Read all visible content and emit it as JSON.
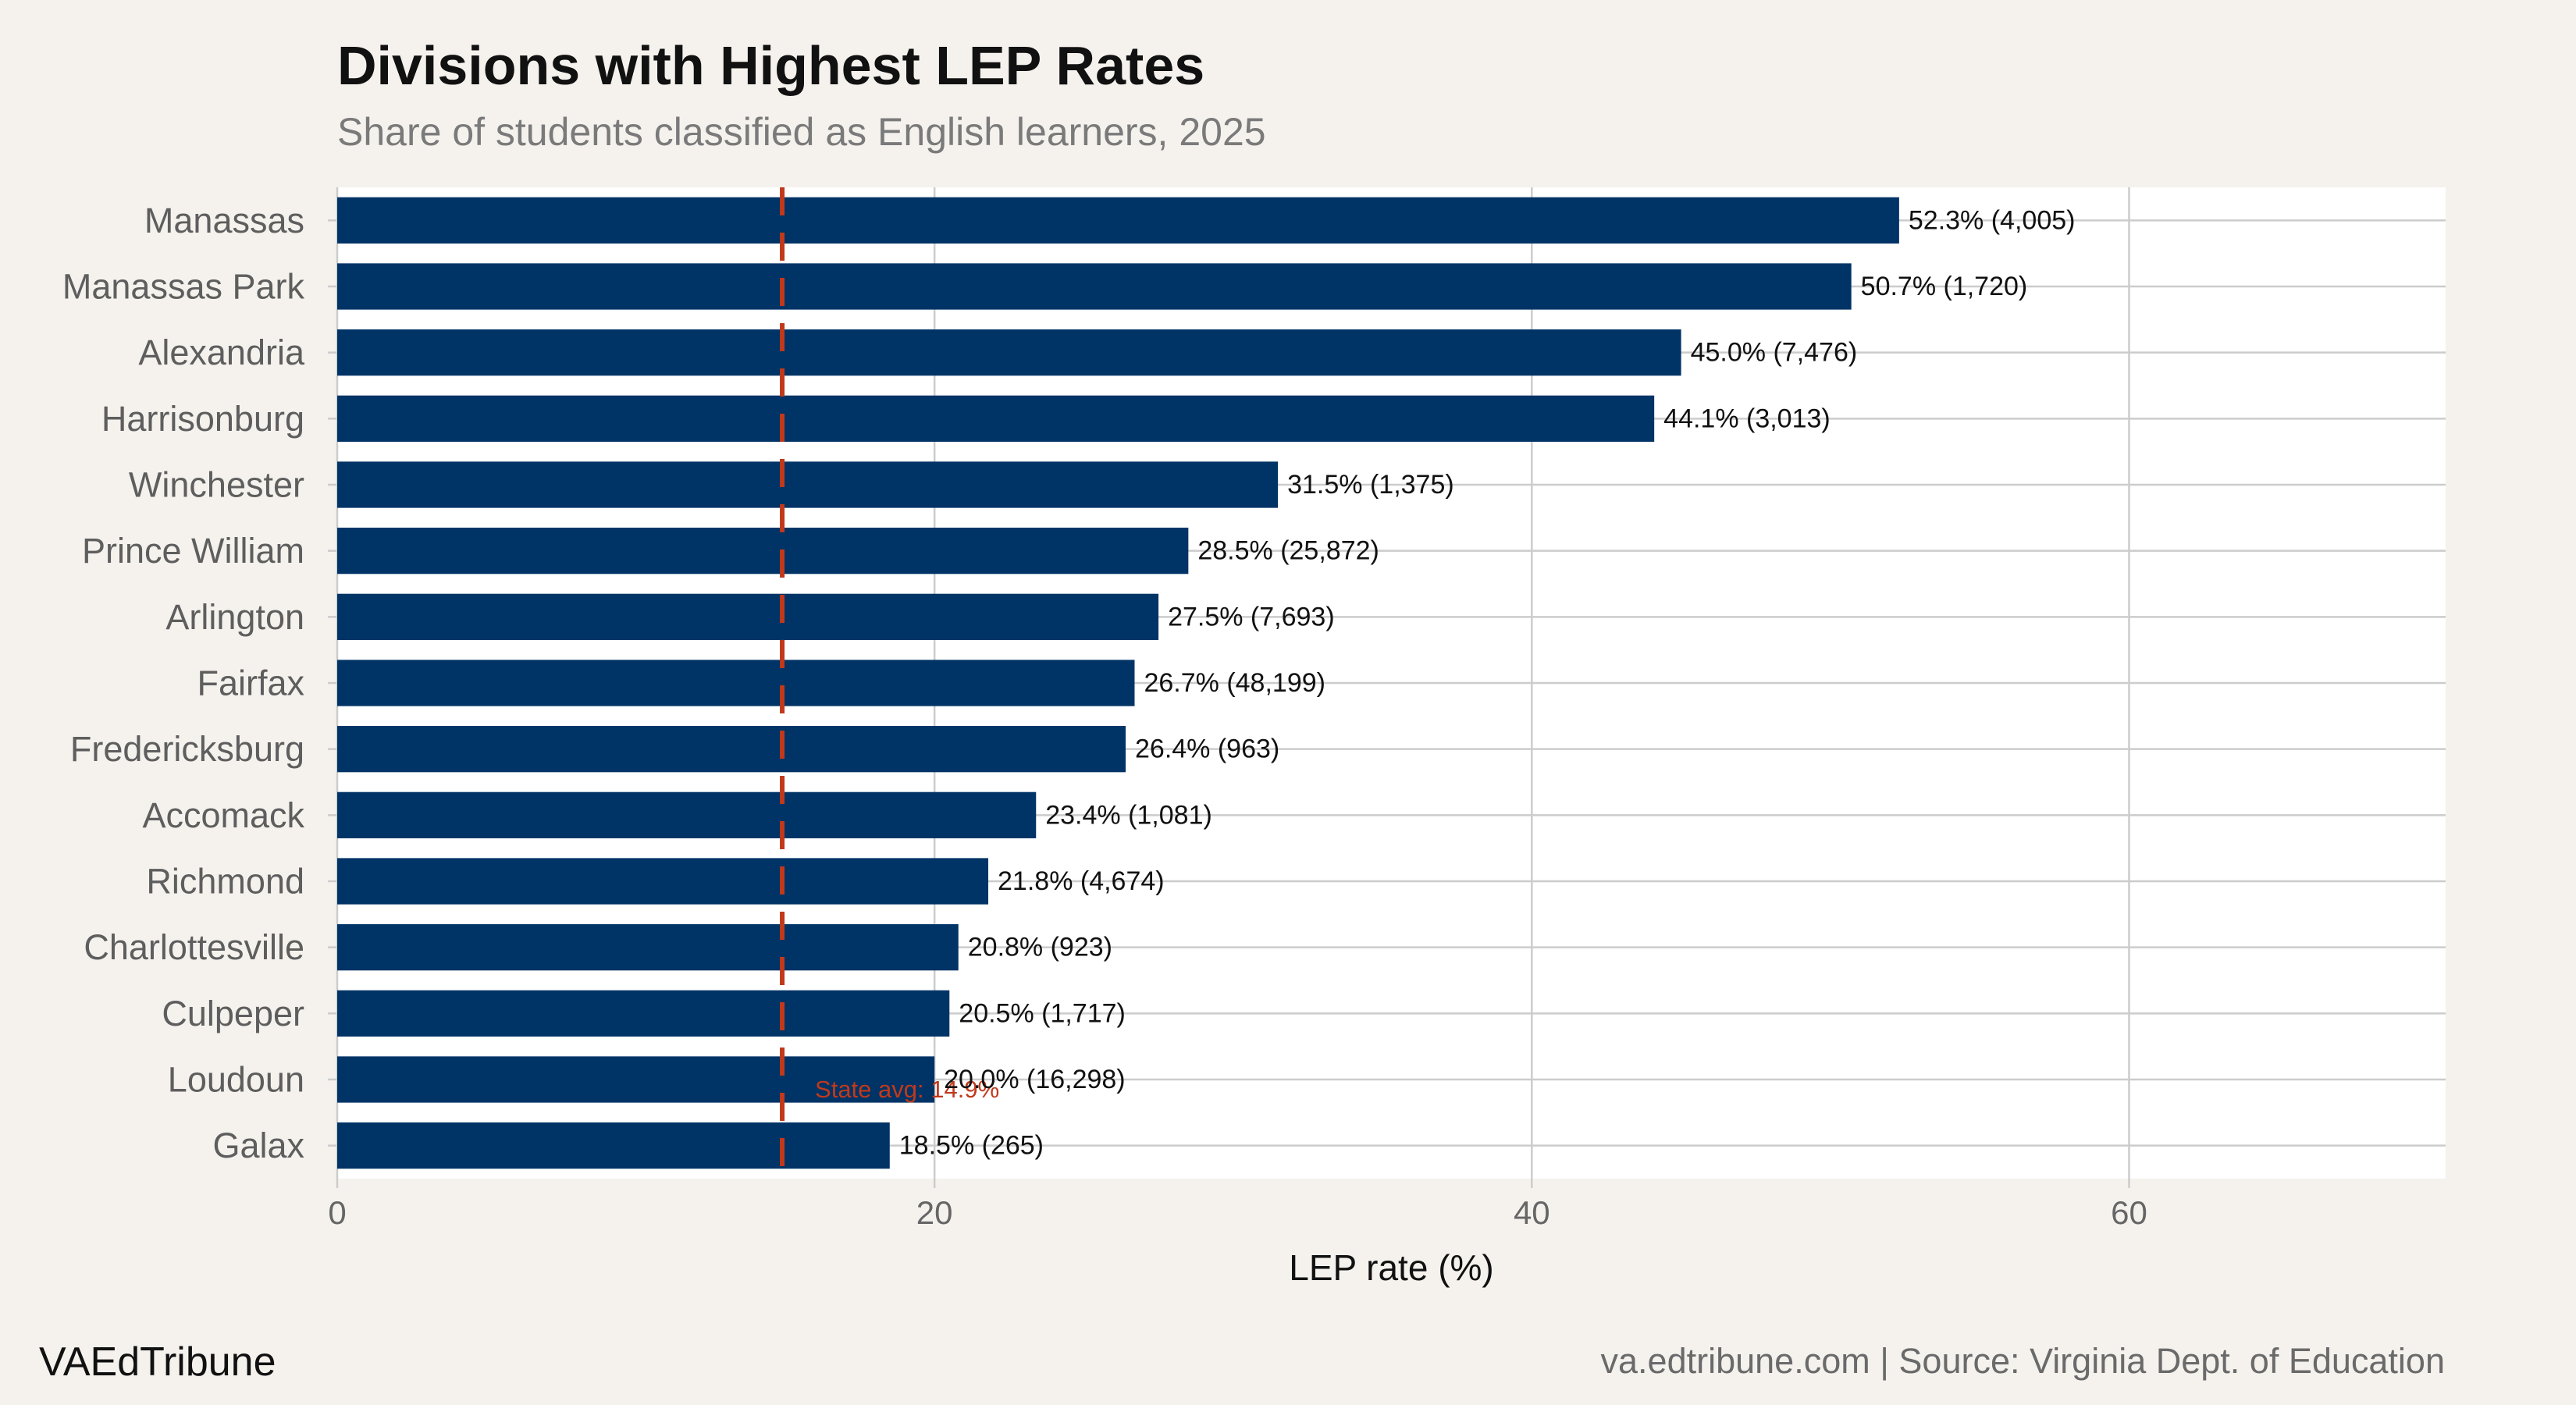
{
  "title": "Divisions with Highest LEP Rates",
  "subtitle": "Share of students classified as English learners, 2025",
  "brand": "VAEdTribune",
  "footer_note": "va.edtribune.com | Source: Virginia Dept. of Education",
  "colors": {
    "background": "#f5f2ee",
    "panel": "#ffffff",
    "bar": "#003366",
    "reference_line": "#c0391b",
    "grid": "#cccccc"
  },
  "chart_data": {
    "type": "bar",
    "orientation": "horizontal",
    "title": "Divisions with Highest LEP Rates",
    "subtitle": "Share of students classified as English learners, 2025",
    "xlabel": "LEP rate (%)",
    "ylabel": "",
    "xlim": [
      0,
      70.6
    ],
    "x_ticks": [
      0,
      20,
      40,
      60
    ],
    "grid": true,
    "categories": [
      "Manassas",
      "Manassas Park",
      "Alexandria",
      "Harrisonburg",
      "Winchester",
      "Prince William",
      "Arlington",
      "Fairfax",
      "Fredericksburg",
      "Accomack",
      "Richmond",
      "Charlottesville",
      "Culpeper",
      "Loudoun",
      "Galax"
    ],
    "values": [
      52.3,
      50.7,
      45.0,
      44.1,
      31.5,
      28.5,
      27.5,
      26.7,
      26.4,
      23.4,
      21.8,
      20.8,
      20.5,
      20.0,
      18.5
    ],
    "data_labels": [
      "52.3% (4,005)",
      "50.7% (1,720)",
      "45.0% (7,476)",
      "44.1% (3,013)",
      "31.5% (1,375)",
      "28.5% (25,872)",
      "27.5% (7,693)",
      "26.7% (48,199)",
      "26.4% (963)",
      "23.4% (1,081)",
      "21.8% (4,674)",
      "20.8% (923)",
      "20.5% (1,717)",
      "20.0% (16,298)",
      "18.5% (265)"
    ],
    "reference_line": {
      "value": 14.9,
      "label": "State avg: 14.9%",
      "style": "dashed"
    }
  }
}
